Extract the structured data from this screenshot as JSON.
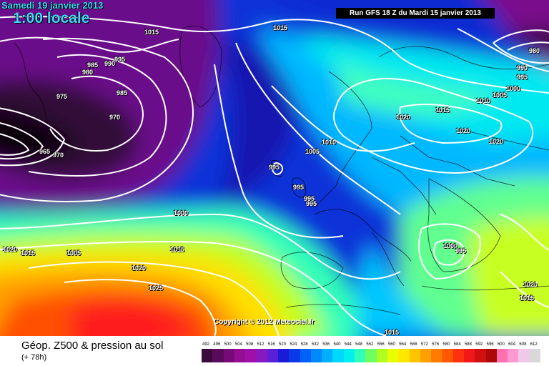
{
  "header": {
    "date": "Samedi 19 janvier 2013",
    "time": "1:00 locale",
    "run": "Run GFS 18 Z du Mardi 15 janvier 2013"
  },
  "copyright": "Copyright © 2012 Meteociel.fr",
  "footer": {
    "field": "Géop. Z500 & pression au sol",
    "lead": "(+ 78h)"
  },
  "legend": {
    "ticks": [
      "492",
      "496",
      "500",
      "504",
      "508",
      "512",
      "516",
      "520",
      "524",
      "528",
      "532",
      "536",
      "540",
      "544",
      "548",
      "552",
      "556",
      "560",
      "564",
      "568",
      "572",
      "576",
      "580",
      "584",
      "588",
      "592",
      "596",
      "600",
      "604",
      "608",
      "612"
    ],
    "colors": [
      "#3a0a3a",
      "#5a0a5a",
      "#780a78",
      "#940e94",
      "#a010a8",
      "#8a18c0",
      "#5a20d8",
      "#1a1ad8",
      "#0a3ae8",
      "#0060f8",
      "#0088ff",
      "#00b0ff",
      "#00d8ff",
      "#00f0ee",
      "#30ffb8",
      "#70ff60",
      "#b0ff20",
      "#e8ff00",
      "#ffe800",
      "#ffc400",
      "#ffa000",
      "#ff7c00",
      "#ff5800",
      "#ff3010",
      "#f01818",
      "#d01010",
      "#b00808",
      "#ff70b0",
      "#ff98d0",
      "#f0c8e8",
      "#d8d8d8"
    ]
  },
  "isobars": [
    {
      "text": "1015",
      "color": "#ffffff"
    },
    {
      "text": "1015",
      "color": "#ffffff"
    },
    {
      "text": "995",
      "color": "#ffffff"
    },
    {
      "text": "990",
      "color": "#ffffff"
    },
    {
      "text": "985",
      "color": "#ffffff"
    },
    {
      "text": "980",
      "color": "#ffffff"
    },
    {
      "text": "975",
      "color": "#ffffff"
    },
    {
      "text": "985",
      "color": "#ffffff"
    },
    {
      "text": "970",
      "color": "#ffffff"
    },
    {
      "text": "965",
      "color": "#ffffff"
    },
    {
      "text": "970",
      "color": "#ffffff"
    },
    {
      "text": "1005",
      "color": "#ffffff"
    },
    {
      "text": "1010",
      "color": "#ffffff"
    },
    {
      "text": "995",
      "color": "#ffffff"
    },
    {
      "text": "995",
      "color": "#ffffff"
    },
    {
      "text": "995",
      "color": "#ffffff"
    },
    {
      "text": "995",
      "color": "#ffffff"
    },
    {
      "text": "1000",
      "color": "#ffffff"
    },
    {
      "text": "1020",
      "color": "#ffffff"
    },
    {
      "text": "1015",
      "color": "#ffffff"
    },
    {
      "text": "1020",
      "color": "#ffffff"
    },
    {
      "text": "1020",
      "color": "#ffffff"
    },
    {
      "text": "1010",
      "color": "#ffffff"
    },
    {
      "text": "1005",
      "color": "#ffffff"
    },
    {
      "text": "1000",
      "color": "#ffffff"
    },
    {
      "text": "995",
      "color": "#ffffff"
    },
    {
      "text": "990",
      "color": "#ffffff"
    },
    {
      "text": "980",
      "color": "#ffffff"
    },
    {
      "text": "1020",
      "color": "#ffffff"
    },
    {
      "text": "1015",
      "color": "#ffffff"
    },
    {
      "text": "1005",
      "color": "#ffffff"
    },
    {
      "text": "1015",
      "color": "#ffffff"
    },
    {
      "text": "1020",
      "color": "#ffffff"
    },
    {
      "text": "1025",
      "color": "#ffffff"
    },
    {
      "text": "1000",
      "color": "#ffffff"
    },
    {
      "text": "995",
      "color": "#ffffff"
    },
    {
      "text": "1020",
      "color": "#ffffff"
    },
    {
      "text": "1015",
      "color": "#ffffff"
    },
    {
      "text": "1015",
      "color": "#ffffff"
    }
  ]
}
